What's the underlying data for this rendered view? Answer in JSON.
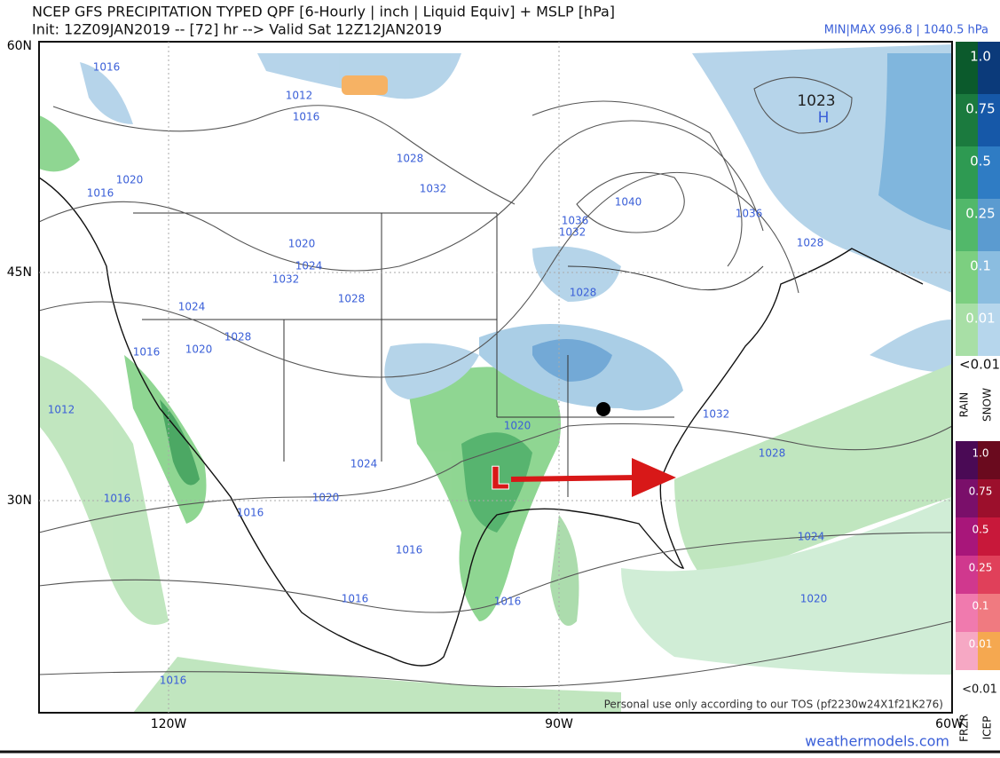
{
  "header": {
    "title": "NCEP GFS PRECIPITATION TYPED QPF [6-Hourly | inch | Liquid Equiv] + MSLP [hPa]",
    "subtitle": "Init: 12Z09JAN2019 -- [72] hr --> Valid Sat 12Z12JAN2019",
    "minmax": "MIN|MAX 996.8 | 1040.5 hPa"
  },
  "axes": {
    "lat": [
      "60N",
      "45N",
      "30N"
    ],
    "lon": [
      "120W",
      "90W",
      "60W"
    ]
  },
  "isobar_labels": [
    1016,
    1012,
    1016,
    1028,
    1032,
    1020,
    1016,
    1020,
    1024,
    1032,
    1028,
    1024,
    1028,
    1020,
    1016,
    1012,
    1036,
    1032,
    1040,
    1036,
    1028,
    1028,
    1020,
    1024,
    1020,
    1016,
    1016,
    1032,
    1028,
    1024,
    1016,
    1016,
    1016,
    1020,
    1016
  ],
  "centers": {
    "high_value": "1023",
    "high": "H",
    "low": "L"
  },
  "legend_rain_snow": {
    "levels": [
      "1.0",
      "0.75",
      "0.5",
      "0.25",
      "0.1",
      "0.01"
    ],
    "below": "<0.01",
    "rain": "RAIN",
    "snow": "SNOW"
  },
  "legend_frzr_icep": {
    "levels": [
      "1.0",
      "0.75",
      "0.5",
      "0.25",
      "0.1",
      "0.01"
    ],
    "below": "<0.01",
    "frzr": "FRZR",
    "icep": "ICEP"
  },
  "footer": {
    "notice": "Personal use only according to our TOS (pf2230w24X1f21K276)",
    "site": "weathermodels.com"
  }
}
